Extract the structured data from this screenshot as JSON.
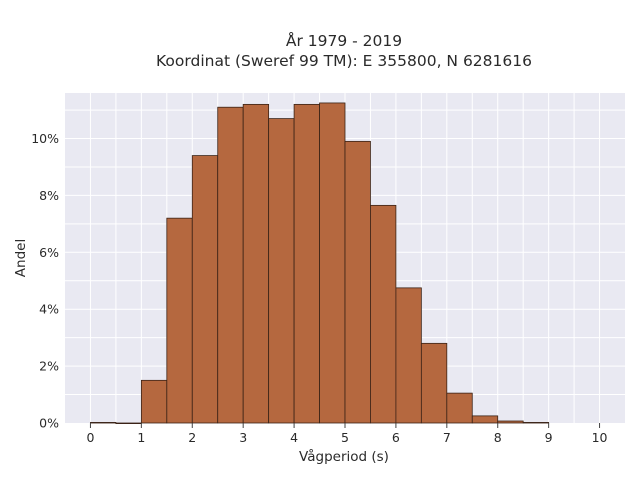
{
  "chart_data": {
    "type": "bar",
    "title_line1": "År 1979 - 2019",
    "title_line2": "Koordinat (Sweref 99 TM): E 355800, N 6281616",
    "xlabel": "Vågperiod (s)",
    "ylabel": "Andel",
    "xlim": [
      -0.5,
      10.5
    ],
    "ylim": [
      0,
      11.6
    ],
    "x_ticks": [
      0,
      1,
      2,
      3,
      4,
      5,
      6,
      7,
      8,
      9,
      10
    ],
    "x_tick_labels": [
      "0",
      "1",
      "2",
      "3",
      "4",
      "5",
      "6",
      "7",
      "8",
      "9",
      "10"
    ],
    "y_ticks": [
      0,
      2,
      4,
      6,
      8,
      10
    ],
    "y_tick_labels": [
      "0%",
      "2%",
      "4%",
      "6%",
      "8%",
      "10%"
    ],
    "bin_width": 0.5,
    "bins": [
      {
        "x0": 0.0,
        "x1": 0.5,
        "value": 0.02
      },
      {
        "x0": 0.5,
        "x1": 1.0,
        "value": 0.0
      },
      {
        "x0": 1.0,
        "x1": 1.5,
        "value": 1.5
      },
      {
        "x0": 1.5,
        "x1": 2.0,
        "value": 7.2
      },
      {
        "x0": 2.0,
        "x1": 2.5,
        "value": 9.4
      },
      {
        "x0": 2.5,
        "x1": 3.0,
        "value": 11.1
      },
      {
        "x0": 3.0,
        "x1": 3.5,
        "value": 11.2
      },
      {
        "x0": 3.5,
        "x1": 4.0,
        "value": 10.7
      },
      {
        "x0": 4.0,
        "x1": 4.5,
        "value": 11.2
      },
      {
        "x0": 4.5,
        "x1": 5.0,
        "value": 11.25
      },
      {
        "x0": 5.0,
        "x1": 5.5,
        "value": 9.9
      },
      {
        "x0": 5.5,
        "x1": 6.0,
        "value": 7.65
      },
      {
        "x0": 6.0,
        "x1": 6.5,
        "value": 4.75
      },
      {
        "x0": 6.5,
        "x1": 7.0,
        "value": 2.8
      },
      {
        "x0": 7.0,
        "x1": 7.5,
        "value": 1.05
      },
      {
        "x0": 7.5,
        "x1": 8.0,
        "value": 0.25
      },
      {
        "x0": 8.0,
        "x1": 8.5,
        "value": 0.07
      },
      {
        "x0": 8.5,
        "x1": 9.0,
        "value": 0.02
      }
    ],
    "grid": true,
    "colors": {
      "bar_fill": "#b5683f",
      "bar_stroke": "#3a2216",
      "plot_bg": "#e9e9f2",
      "grid": "#ffffff"
    }
  }
}
